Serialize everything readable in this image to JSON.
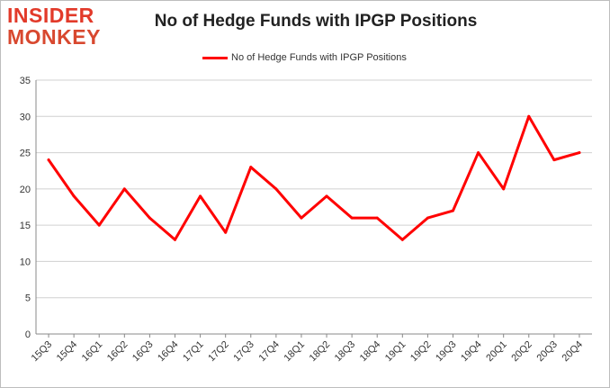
{
  "logo": {
    "line1": "INSIDER",
    "line2": "MONKEY"
  },
  "colors": {
    "series": "#ff0000",
    "grid": "#d0d0d0",
    "logo": "#e23a2a"
  },
  "chart_data": {
    "type": "line",
    "title": "No of Hedge Funds with IPGP Positions",
    "xlabel": "",
    "ylabel": "",
    "ylim": [
      0,
      35
    ],
    "yticks": [
      0,
      5,
      10,
      15,
      20,
      25,
      30,
      35
    ],
    "grid": true,
    "legend_position": "top-center",
    "categories": [
      "15Q3",
      "15Q4",
      "16Q1",
      "16Q2",
      "16Q3",
      "16Q4",
      "17Q1",
      "17Q2",
      "17Q3",
      "17Q4",
      "18Q1",
      "18Q2",
      "18Q3",
      "18Q4",
      "19Q1",
      "19Q2",
      "19Q3",
      "19Q4",
      "20Q1",
      "20Q2",
      "20Q3",
      "20Q4"
    ],
    "series": [
      {
        "name": "No of Hedge Funds with IPGP Positions",
        "values": [
          24,
          19,
          15,
          20,
          16,
          13,
          19,
          14,
          23,
          20,
          16,
          19,
          16,
          16,
          13,
          16,
          17,
          25,
          20,
          30,
          24,
          25
        ]
      }
    ]
  }
}
